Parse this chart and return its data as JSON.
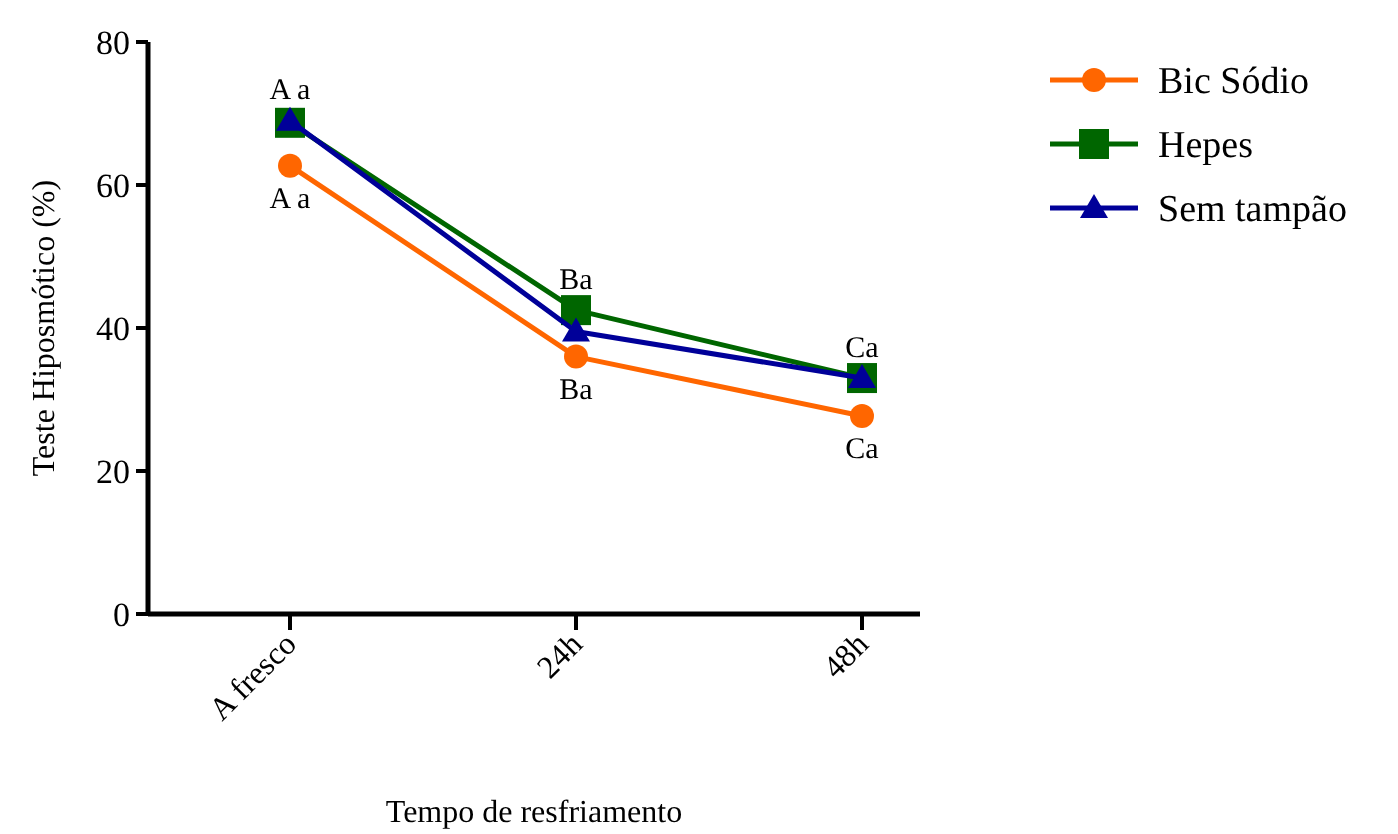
{
  "chart_data": {
    "type": "line",
    "xlabel": "Tempo de resfriamento",
    "ylabel": "Teste Hiposmótico (%)",
    "categories": [
      "A fresco",
      "24h",
      "48h"
    ],
    "ylim": [
      0,
      80
    ],
    "yticks": [
      0,
      20,
      40,
      60,
      80
    ],
    "legend": "top right",
    "grid": false,
    "series": [
      {
        "name": "Bic Sódio",
        "color": "#ff6600",
        "marker": "circle",
        "values": [
          62.7,
          36,
          27.7
        ]
      },
      {
        "name": "Hepes",
        "color": "#006600",
        "marker": "square",
        "values": [
          68.7,
          42.5,
          33
        ]
      },
      {
        "name": "Sem tampão",
        "color": "#000099",
        "marker": "triangle",
        "values": [
          69,
          39.5,
          33
        ]
      }
    ],
    "annotations": [
      {
        "text": "A a",
        "x": "A fresco",
        "y": 69
      },
      {
        "text": "A a",
        "x": "A fresco",
        "y": 62.7
      },
      {
        "text": "Ba",
        "x": "24h",
        "y": 42.5
      },
      {
        "text": "Ba",
        "x": "24h",
        "y": 36
      },
      {
        "text": "Ca",
        "x": "48h",
        "y": 33
      },
      {
        "text": "Ca",
        "x": "48h",
        "y": 27.7
      }
    ]
  }
}
